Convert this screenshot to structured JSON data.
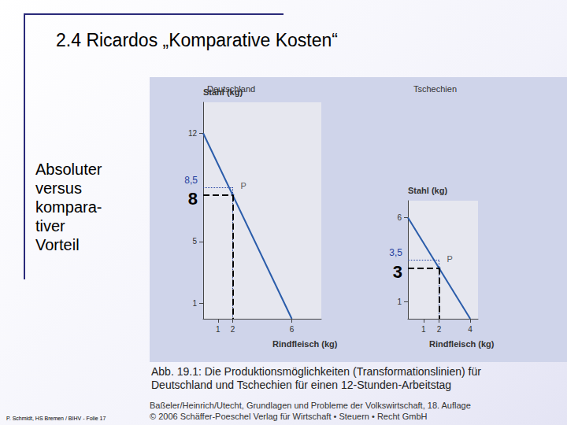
{
  "title": "2.4 Ricardos „Komparative Kosten“",
  "side_text": [
    "Absoluter",
    "versus",
    "kompara-",
    "tiver",
    "Vorteil"
  ],
  "footer": "P. Schmidt, HS Bremen / BIHV - Folie 17",
  "caption": "Abb. 19.1: Die Produktionsmöglichkeiten (Transformationslinien) für Deutschland und Tschechien für einen 12-Stunden-Arbeitstag",
  "source": [
    "Baßeler/Heinrich/Utecht, Grundlagen und Probleme der Volkswirtschaft, 18. Auflage",
    "© 2006 Schäffer-Poeschel Verlag für Wirtschaft • Steuern • Recht GmbH"
  ],
  "chart_data": [
    {
      "type": "line",
      "title": "Deutschland",
      "x_label": "Rindfleisch (kg)",
      "y_label": "Stahl (kg)",
      "x": [
        0,
        6
      ],
      "values": [
        12,
        0
      ],
      "color": "#2a5caa",
      "xlim": [
        0,
        8
      ],
      "ylim": [
        0,
        14
      ],
      "xticks": [
        1,
        2,
        6
      ],
      "yticks": [
        1,
        5,
        12
      ],
      "grid": false,
      "points": [
        {
          "label": "P",
          "x": 2,
          "y": 8
        }
      ],
      "annotations": [
        {
          "label": "8,5",
          "x": 2,
          "y": 8.5,
          "line_style": "dotted",
          "color": "#1f3f9f"
        },
        {
          "label": "8",
          "x": 2,
          "y": 8,
          "line_style": "dashed",
          "color": "#000000"
        }
      ]
    },
    {
      "type": "line",
      "title": "Tschechien",
      "x_label": "Rindfleisch (kg)",
      "y_label": "Stahl (kg)",
      "x": [
        0,
        4
      ],
      "values": [
        6,
        0
      ],
      "color": "#2a5caa",
      "xlim": [
        0,
        4.5
      ],
      "ylim": [
        0,
        7
      ],
      "xticks": [
        1,
        2,
        4
      ],
      "yticks": [
        1,
        6
      ],
      "grid": false,
      "points": [
        {
          "label": "P",
          "x": 2,
          "y": 3
        }
      ],
      "annotations": [
        {
          "label": "3,5",
          "x": 2,
          "y": 3.5,
          "line_style": "dotted",
          "color": "#1f3f9f"
        },
        {
          "label": "3",
          "x": 2,
          "y": 3,
          "line_style": "dashed",
          "color": "#000000"
        }
      ]
    }
  ]
}
